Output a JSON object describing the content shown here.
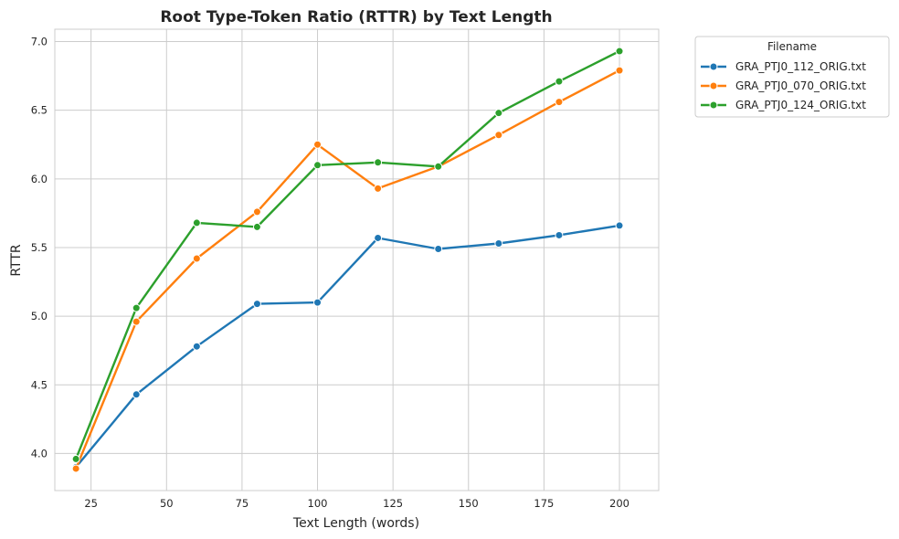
{
  "chart_data": {
    "type": "line",
    "title": "Root Type-Token Ratio (RTTR) by Text Length",
    "xlabel": "Text Length (words)",
    "ylabel": "RTTR",
    "xlim": [
      13,
      213
    ],
    "ylim": [
      3.73,
      7.09
    ],
    "xticks": [
      25,
      50,
      75,
      100,
      125,
      150,
      175,
      200
    ],
    "yticks": [
      4.0,
      4.5,
      5.0,
      5.5,
      6.0,
      6.5,
      7.0
    ],
    "grid": true,
    "legend": {
      "title": "Filename",
      "position": "outside-top-right"
    },
    "x": [
      20,
      40,
      60,
      80,
      100,
      120,
      140,
      160,
      180,
      200
    ],
    "series": [
      {
        "name": "GRA_PTJ0_112_ORIG.txt",
        "color": "#1f77b4",
        "values": [
          3.9,
          4.43,
          4.78,
          5.09,
          5.1,
          5.57,
          5.49,
          5.53,
          5.59,
          5.66
        ]
      },
      {
        "name": "GRA_PTJ0_070_ORIG.txt",
        "color": "#ff7f0e",
        "values": [
          3.89,
          4.96,
          5.42,
          5.76,
          6.25,
          5.93,
          6.09,
          6.32,
          6.56,
          6.79
        ]
      },
      {
        "name": "GRA_PTJ0_124_ORIG.txt",
        "color": "#2ca02c",
        "values": [
          3.96,
          5.06,
          5.68,
          5.65,
          6.1,
          6.12,
          6.09,
          6.48,
          6.71,
          6.93
        ]
      }
    ]
  }
}
